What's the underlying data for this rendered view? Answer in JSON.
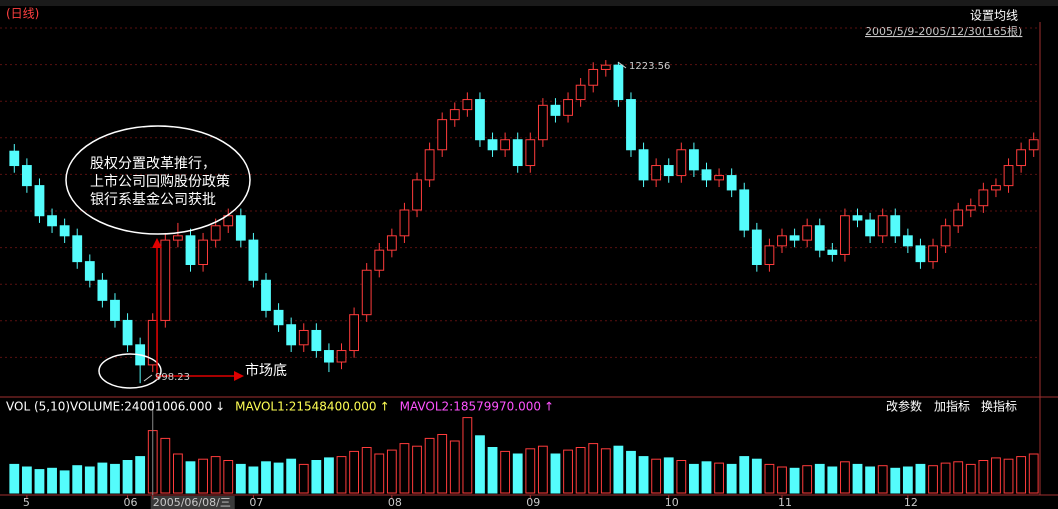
{
  "chart_data": {
    "type": "candlestick",
    "title": "(日线)",
    "setting_button": "设置均线",
    "date_range": "2005/5/9-2005/12/30(165根)",
    "up_color": "#ff3c3c",
    "down_color": "#54fcfc",
    "ylim": [
      990,
      1248
    ],
    "categories": [
      null,
      "5",
      null,
      null,
      null,
      null,
      null,
      null,
      null,
      "06",
      null,
      "2005/06/08/三",
      null,
      null,
      null,
      null,
      null,
      null,
      null,
      "07",
      null,
      null,
      null,
      null,
      null,
      null,
      null,
      null,
      null,
      null,
      "08",
      null,
      null,
      null,
      null,
      null,
      null,
      null,
      null,
      null,
      null,
      "09",
      null,
      null,
      null,
      null,
      null,
      null,
      null,
      null,
      null,
      null,
      "10",
      null,
      null,
      null,
      null,
      null,
      null,
      null,
      null,
      "11",
      null,
      null,
      null,
      null,
      null,
      null,
      null,
      null,
      null,
      "12",
      null,
      null,
      null,
      null,
      null,
      null,
      null,
      null,
      null,
      null
    ],
    "open": [
      1160,
      1150,
      1136,
      1115,
      1108,
      1101,
      1083,
      1070,
      1056,
      1042,
      1025,
      1011,
      1042,
      1098,
      1101,
      1081,
      1098,
      1108,
      1115,
      1098,
      1070,
      1049,
      1039,
      1025,
      1035,
      1021,
      1013,
      1021,
      1046,
      1077,
      1091,
      1101,
      1119,
      1140,
      1161,
      1182,
      1189,
      1196,
      1168,
      1161,
      1168,
      1150,
      1168,
      1192,
      1185,
      1196,
      1206,
      1217,
      1220,
      1196,
      1161,
      1140,
      1150,
      1143,
      1161,
      1147,
      1140,
      1143,
      1133,
      1105,
      1081,
      1094,
      1101,
      1098,
      1108,
      1091,
      1088,
      1115,
      1112,
      1101,
      1115,
      1101,
      1094,
      1083,
      1094,
      1108,
      1119,
      1122,
      1133,
      1136,
      1150,
      1161
    ],
    "high": [
      1165,
      1155,
      1141,
      1120,
      1113,
      1106,
      1088,
      1075,
      1061,
      1047,
      1030,
      1047,
      1103,
      1110,
      1106,
      1103,
      1113,
      1120,
      1120,
      1103,
      1075,
      1054,
      1044,
      1040,
      1040,
      1026,
      1026,
      1051,
      1082,
      1096,
      1106,
      1124,
      1145,
      1166,
      1187,
      1194,
      1201,
      1201,
      1173,
      1173,
      1173,
      1173,
      1197,
      1197,
      1201,
      1211,
      1222,
      1223.56,
      1222,
      1201,
      1166,
      1155,
      1155,
      1166,
      1166,
      1152,
      1148,
      1148,
      1138,
      1110,
      1099,
      1106,
      1106,
      1113,
      1113,
      1096,
      1120,
      1120,
      1117,
      1120,
      1120,
      1106,
      1099,
      1099,
      1113,
      1124,
      1127,
      1138,
      1141,
      1155,
      1166,
      1173
    ],
    "low": [
      1145,
      1131,
      1110,
      1103,
      1096,
      1078,
      1065,
      1051,
      1037,
      1020,
      998.23,
      1006,
      1037,
      1093,
      1076,
      1076,
      1093,
      1103,
      1093,
      1065,
      1044,
      1034,
      1020,
      1020,
      1016,
      1006,
      1008,
      1016,
      1041,
      1072,
      1086,
      1096,
      1114,
      1135,
      1156,
      1177,
      1184,
      1163,
      1156,
      1156,
      1145,
      1145,
      1163,
      1180,
      1180,
      1191,
      1201,
      1212,
      1191,
      1156,
      1135,
      1135,
      1138,
      1138,
      1142,
      1135,
      1135,
      1128,
      1100,
      1076,
      1076,
      1089,
      1093,
      1093,
      1086,
      1083,
      1083,
      1107,
      1096,
      1096,
      1096,
      1089,
      1078,
      1078,
      1089,
      1103,
      1114,
      1117,
      1128,
      1131,
      1145,
      1156
    ],
    "close": [
      1150,
      1136,
      1115,
      1108,
      1101,
      1083,
      1070,
      1056,
      1042,
      1025,
      1011,
      1042,
      1098,
      1101,
      1081,
      1098,
      1108,
      1115,
      1098,
      1070,
      1049,
      1039,
      1025,
      1035,
      1021,
      1013,
      1021,
      1046,
      1077,
      1091,
      1101,
      1119,
      1140,
      1161,
      1182,
      1189,
      1196,
      1168,
      1161,
      1168,
      1150,
      1168,
      1192,
      1185,
      1196,
      1206,
      1217,
      1220,
      1196,
      1161,
      1140,
      1150,
      1143,
      1161,
      1147,
      1140,
      1143,
      1133,
      1105,
      1081,
      1094,
      1101,
      1098,
      1108,
      1091,
      1088,
      1115,
      1112,
      1101,
      1115,
      1101,
      1094,
      1083,
      1094,
      1108,
      1119,
      1122,
      1133,
      1136,
      1150,
      1161,
      1168
    ],
    "annotations": [
      "股权分置改革推行，",
      "上市公司回购股份政策",
      "银行系基金公司获批",
      "市场底"
    ],
    "volume": {
      "indicator": "VOL (5,10)",
      "readouts": [
        {
          "text": "VOLUME:24001006.000",
          "arrow": "↓",
          "color": "#ffffff"
        },
        {
          "text": "MAVOL1:21548400.000",
          "arrow": "↑",
          "color": "#ffff54"
        },
        {
          "text": "MAVOL2:18579970.000",
          "arrow": "↑",
          "color": "#ff54ff"
        }
      ],
      "buttons": [
        "改参数",
        "加指标",
        "换指标"
      ],
      "ylim": [
        0,
        60000000
      ],
      "values": [
        22000000,
        20000000,
        18000000,
        19000000,
        17000000,
        21000000,
        20000000,
        23000000,
        22000000,
        25000000,
        28000000,
        48000000,
        42000000,
        30000000,
        24000000,
        26000000,
        28000000,
        25000000,
        22000000,
        20000000,
        24000000,
        23000000,
        26000000,
        22000000,
        25000000,
        27000000,
        28000000,
        32000000,
        35000000,
        30000000,
        33000000,
        38000000,
        36000000,
        42000000,
        45000000,
        40000000,
        58000000,
        44000000,
        35000000,
        32000000,
        30000000,
        34000000,
        36000000,
        30000000,
        33000000,
        35000000,
        38000000,
        34000000,
        36000000,
        32000000,
        28000000,
        26000000,
        27000000,
        25000000,
        22000000,
        24000000,
        23000000,
        22000000,
        28000000,
        26000000,
        22000000,
        20000000,
        19000000,
        21000000,
        22000000,
        20000000,
        24000000,
        22000000,
        20000000,
        21000000,
        19000000,
        20000000,
        22000000,
        21000000,
        23000000,
        24000000,
        22000000,
        25000000,
        27000000,
        26000000,
        28000000,
        30000000
      ]
    }
  }
}
